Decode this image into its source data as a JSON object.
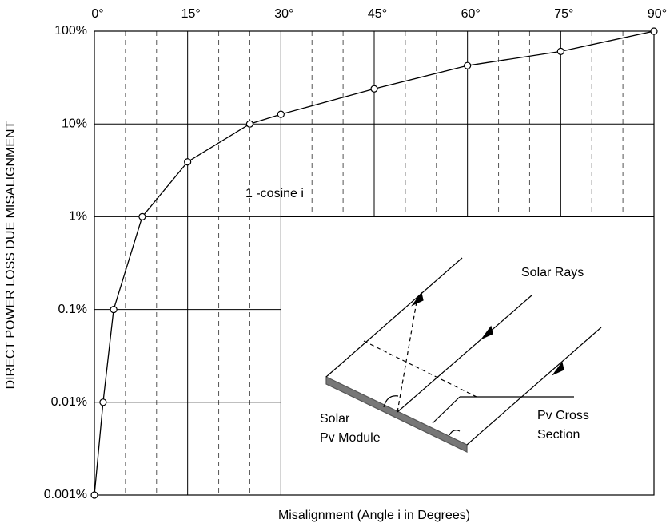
{
  "chart_data": {
    "type": "line",
    "x_label": "Misalignment (Angle i in Degrees)",
    "y_label": "DIRECT POWER LOSS DUE MISALIGNMENT",
    "curve_label": "1 -cosine i",
    "inset_labels": [
      "Solar Rays",
      "Pv Cross",
      "Section",
      "Solar",
      "Pv Module"
    ],
    "x": [
      0,
      1.4,
      3.1,
      7.7,
      15,
      25,
      30,
      45,
      60,
      75,
      90
    ],
    "values": [
      0.001,
      0.01,
      0.1,
      1,
      3.9,
      10,
      12.7,
      23.9,
      42.5,
      60.5,
      100
    ],
    "color": "#000000",
    "marker": "open-circle",
    "xlim": [
      0,
      90
    ],
    "ylim": [
      0.001,
      100
    ],
    "y_scale": "log",
    "x_axis_position": "top",
    "xticks": [
      {
        "value": 0,
        "label": "0°"
      },
      {
        "value": 15,
        "label": "15°"
      },
      {
        "value": 30,
        "label": "30°"
      },
      {
        "value": 45,
        "label": "45°"
      },
      {
        "value": 60,
        "label": "60°"
      },
      {
        "value": 75,
        "label": "75°"
      },
      {
        "value": 90,
        "label": "90°"
      }
    ],
    "x_minor_ticks": [
      5,
      10,
      20,
      25,
      35,
      40,
      50,
      55,
      65,
      70,
      80,
      85
    ],
    "yticks": [
      {
        "value": 0.001,
        "label": "0.001%"
      },
      {
        "value": 0.01,
        "label": "0.01%"
      },
      {
        "value": 0.1,
        "label": "0.1%"
      },
      {
        "value": 1,
        "label": "1%"
      },
      {
        "value": 10,
        "label": "10%"
      },
      {
        "value": 100,
        "label": "100%"
      }
    ],
    "grid": true
  }
}
